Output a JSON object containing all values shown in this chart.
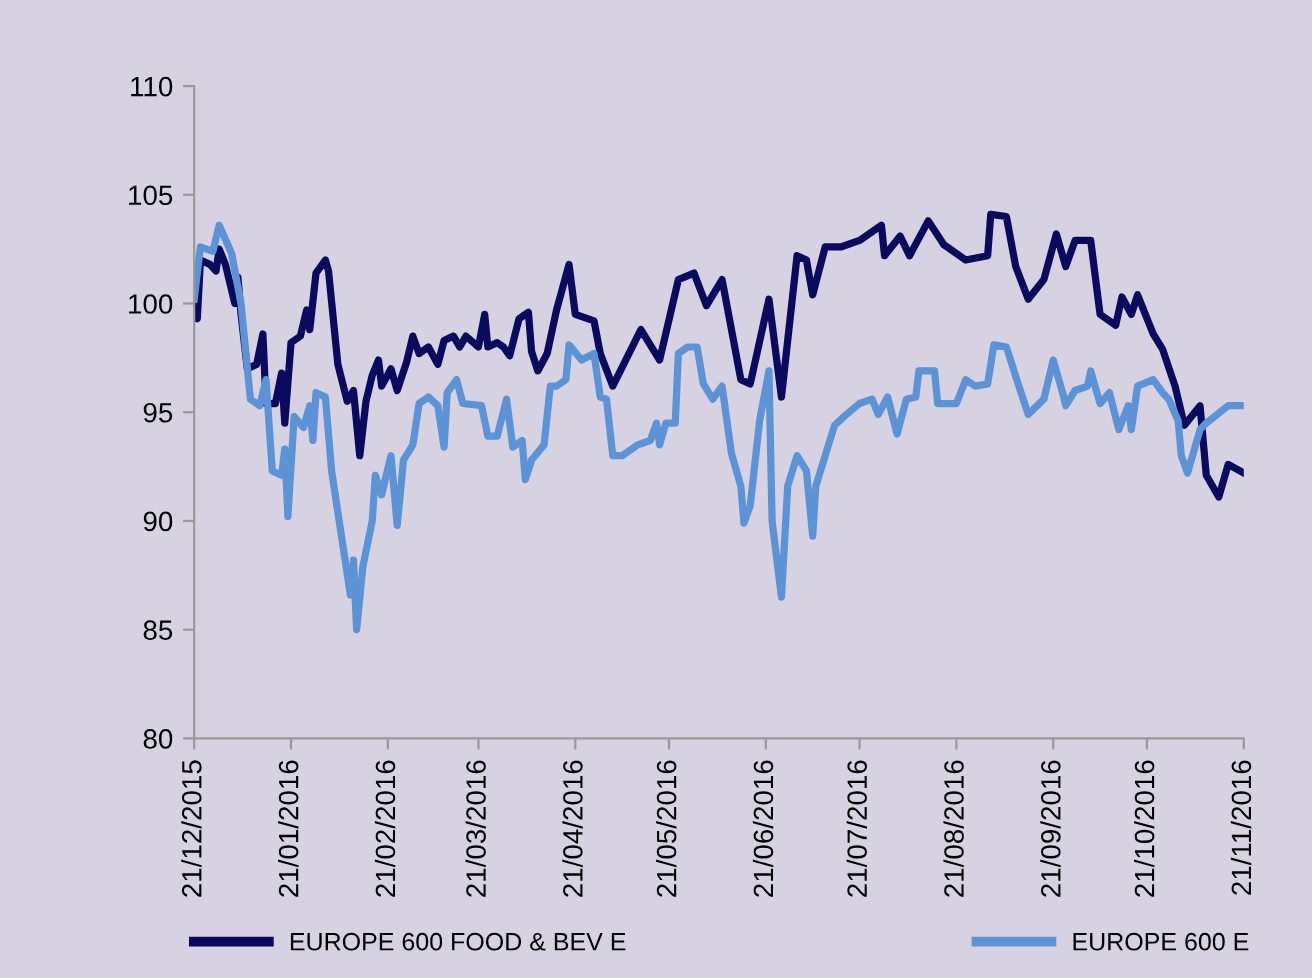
{
  "chart_data": {
    "type": "line",
    "xlim": [
      "2015-12-21",
      "2016-11-21"
    ],
    "ylim": [
      80,
      110
    ],
    "yticks": [
      80,
      85,
      90,
      95,
      100,
      105,
      110
    ],
    "xticks": [
      {
        "value": "2015-12-21",
        "label": "21/12/2015"
      },
      {
        "value": "2016-01-21",
        "label": "21/01/2016"
      },
      {
        "value": "2016-02-21",
        "label": "21/02/2016"
      },
      {
        "value": "2016-03-21",
        "label": "21/03/2016"
      },
      {
        "value": "2016-04-21",
        "label": "21/04/2016"
      },
      {
        "value": "2016-05-21",
        "label": "21/05/2016"
      },
      {
        "value": "2016-06-21",
        "label": "21/06/2016"
      },
      {
        "value": "2016-07-21",
        "label": "21/07/2016"
      },
      {
        "value": "2016-08-21",
        "label": "21/08/2016"
      },
      {
        "value": "2016-09-21",
        "label": "21/09/2016"
      },
      {
        "value": "2016-10-21",
        "label": "21/10/2016"
      },
      {
        "value": "2016-11-21",
        "label": "21/11/2016"
      }
    ],
    "grid": false,
    "legend": "bottom",
    "marker": "none",
    "line_style": "solid",
    "series": [
      {
        "name": "EUROPE 600 FOOD & BEV E",
        "color": "#0a0a5e",
        "x": [
          "2015-12-21",
          "2015-12-22",
          "2015-12-23",
          "2015-12-26",
          "2015-12-28",
          "2015-12-29",
          "2015-12-31",
          "2016-01-03",
          "2016-01-04",
          "2016-01-05",
          "2016-01-07",
          "2016-01-10",
          "2016-01-12",
          "2016-01-13",
          "2016-01-16",
          "2016-01-18",
          "2016-01-19",
          "2016-01-21",
          "2016-01-24",
          "2016-01-26",
          "2016-01-27",
          "2016-01-29",
          "2016-02-01",
          "2016-02-02",
          "2016-02-05",
          "2016-02-08",
          "2016-02-10",
          "2016-02-12",
          "2016-02-14",
          "2016-02-16",
          "2016-02-18",
          "2016-02-19",
          "2016-02-22",
          "2016-02-24",
          "2016-02-27",
          "2016-02-29",
          "2016-03-02",
          "2016-03-05",
          "2016-03-08",
          "2016-03-10",
          "2016-03-13",
          "2016-03-15",
          "2016-03-17",
          "2016-03-21",
          "2016-03-23",
          "2016-03-24",
          "2016-03-27",
          "2016-03-29",
          "2016-03-31",
          "2016-04-03",
          "2016-04-06",
          "2016-04-07",
          "2016-04-09",
          "2016-04-12",
          "2016-04-15",
          "2016-04-19",
          "2016-04-21",
          "2016-04-27",
          "2016-04-29",
          "2016-05-03",
          "2016-05-12",
          "2016-05-18",
          "2016-05-24",
          "2016-05-29",
          "2016-06-02",
          "2016-06-07",
          "2016-06-13",
          "2016-06-16",
          "2016-06-22",
          "2016-06-26",
          "2016-07-01",
          "2016-07-04",
          "2016-07-06",
          "2016-07-10",
          "2016-07-15",
          "2016-07-21",
          "2016-07-28",
          "2016-07-29",
          "2016-08-03",
          "2016-08-06",
          "2016-08-12",
          "2016-08-17",
          "2016-08-24",
          "2016-08-31",
          "2016-09-01",
          "2016-09-06",
          "2016-09-09",
          "2016-09-13",
          "2016-09-18",
          "2016-09-22",
          "2016-09-25",
          "2016-09-28",
          "2016-10-03",
          "2016-10-06",
          "2016-10-11",
          "2016-10-13",
          "2016-10-16",
          "2016-10-18",
          "2016-10-23",
          "2016-10-26",
          "2016-10-30",
          "2016-11-02",
          "2016-11-07",
          "2016-11-09",
          "2016-11-13",
          "2016-11-16",
          "2016-11-21"
        ],
        "values": [
          100,
          99.3,
          102,
          101.8,
          101.5,
          102.5,
          101.8,
          100,
          101.2,
          99.5,
          97,
          97.2,
          98.6,
          95.4,
          95.4,
          96.8,
          94.5,
          98.2,
          98.5,
          99.7,
          98.8,
          101.4,
          102,
          101.5,
          97.2,
          95.5,
          96,
          93,
          95.5,
          96.7,
          97.4,
          96.2,
          97,
          96,
          97.3,
          98.5,
          97.7,
          98,
          97.2,
          98.3,
          98.5,
          98,
          98.5,
          98,
          99.5,
          98,
          98.2,
          98,
          97.6,
          99.3,
          99.6,
          97.8,
          96.9,
          97.7,
          99.7,
          101.8,
          99.5,
          99.2,
          97.7,
          96.2,
          98.8,
          97.4,
          101.1,
          101.4,
          99.9,
          101.1,
          96.5,
          96.3,
          100.2,
          95.7,
          102.2,
          102,
          100.4,
          102.6,
          102.6,
          102.9,
          103.6,
          102.2,
          103.1,
          102.2,
          103.8,
          102.7,
          102,
          102.2,
          104.1,
          104,
          101.7,
          100.2,
          101.1,
          103.2,
          101.7,
          102.9,
          102.9,
          99.5,
          99,
          100.3,
          99.5,
          100.4,
          98.6,
          97.9,
          96.2,
          94.4,
          95.3,
          92.1,
          91.1,
          92.6,
          92.2
        ]
      },
      {
        "name": "EUROPE 600 E",
        "color": "#5b93d6",
        "x": [
          "2015-12-21",
          "2015-12-23",
          "2015-12-27",
          "2015-12-29",
          "2016-01-02",
          "2016-01-05",
          "2016-01-08",
          "2016-01-11",
          "2016-01-13",
          "2016-01-15",
          "2016-01-18",
          "2016-01-19",
          "2016-01-20",
          "2016-01-22",
          "2016-01-25",
          "2016-01-27",
          "2016-01-28",
          "2016-01-29",
          "2016-02-01",
          "2016-02-03",
          "2016-02-09",
          "2016-02-10",
          "2016-02-11",
          "2016-02-13",
          "2016-02-16",
          "2016-02-17",
          "2016-02-19",
          "2016-02-22",
          "2016-02-24",
          "2016-02-26",
          "2016-02-29",
          "2016-03-02",
          "2016-03-05",
          "2016-03-08",
          "2016-03-10",
          "2016-03-11",
          "2016-03-14",
          "2016-03-16",
          "2016-03-22",
          "2016-03-24",
          "2016-03-27",
          "2016-03-30",
          "2016-04-01",
          "2016-04-04",
          "2016-04-05",
          "2016-04-07",
          "2016-04-11",
          "2016-04-13",
          "2016-04-15",
          "2016-04-18",
          "2016-04-19",
          "2016-04-23",
          "2016-04-27",
          "2016-04-29",
          "2016-05-01",
          "2016-05-03",
          "2016-05-06",
          "2016-05-11",
          "2016-05-15",
          "2016-05-17",
          "2016-05-18",
          "2016-05-20",
          "2016-05-23",
          "2016-05-24",
          "2016-05-27",
          "2016-05-30",
          "2016-06-01",
          "2016-06-04",
          "2016-06-07",
          "2016-06-10",
          "2016-06-13",
          "2016-06-14",
          "2016-06-16",
          "2016-06-19",
          "2016-06-22",
          "2016-06-23",
          "2016-06-26",
          "2016-06-28",
          "2016-07-01",
          "2016-07-04",
          "2016-07-06",
          "2016-07-07",
          "2016-07-10",
          "2016-07-13",
          "2016-07-16",
          "2016-07-21",
          "2016-07-25",
          "2016-07-27",
          "2016-07-30",
          "2016-08-02",
          "2016-08-05",
          "2016-08-08",
          "2016-08-09",
          "2016-08-14",
          "2016-08-15",
          "2016-08-21",
          "2016-08-24",
          "2016-08-27",
          "2016-08-31",
          "2016-09-02",
          "2016-09-06",
          "2016-09-10",
          "2016-09-13",
          "2016-09-18",
          "2016-09-21",
          "2016-09-24",
          "2016-09-25",
          "2016-09-28",
          "2016-10-02",
          "2016-10-03",
          "2016-10-06",
          "2016-10-09",
          "2016-10-12",
          "2016-10-15",
          "2016-10-16",
          "2016-10-18",
          "2016-10-23",
          "2016-10-26",
          "2016-10-28",
          "2016-10-31",
          "2016-11-01",
          "2016-11-03",
          "2016-11-07",
          "2016-11-09",
          "2016-11-16",
          "2016-11-21"
        ],
        "values": [
          100.2,
          102.6,
          102.4,
          103.6,
          102.3,
          100,
          95.6,
          95.3,
          96.5,
          92.3,
          92.1,
          93.3,
          90.2,
          94.8,
          94.3,
          95.3,
          93.7,
          95.9,
          95.7,
          92.3,
          86.6,
          88.2,
          85,
          87.9,
          90,
          92.1,
          91.2,
          93,
          89.8,
          92.8,
          93.5,
          95.4,
          95.7,
          95.3,
          93.4,
          95.9,
          96.5,
          95.4,
          95.3,
          93.9,
          93.9,
          95.6,
          93.4,
          93.7,
          91.9,
          92.8,
          93.5,
          96.2,
          96.2,
          96.5,
          98.1,
          97.4,
          97.7,
          95.7,
          95.6,
          93,
          93,
          93.5,
          93.7,
          94.5,
          93.5,
          94.5,
          94.5,
          97.7,
          98,
          98,
          96.3,
          95.6,
          96.2,
          93.1,
          91.6,
          89.9,
          90.7,
          94.6,
          96.9,
          90,
          86.5,
          91.6,
          93,
          92.3,
          89.3,
          91.6,
          93,
          94.4,
          94.8,
          95.4,
          95.6,
          94.9,
          95.7,
          94,
          95.6,
          95.7,
          96.9,
          96.9,
          95.4,
          95.4,
          96.5,
          96.2,
          96.3,
          98.1,
          98,
          96.2,
          94.9,
          95.6,
          97.4,
          95.9,
          95.3,
          96,
          96.2,
          96.9,
          95.4,
          95.9,
          94.2,
          95.3,
          94.2,
          96.2,
          96.5,
          95.9,
          95.6,
          94.6,
          93,
          92.2,
          94.2,
          94.5,
          95.3,
          95.3
        ]
      }
    ]
  }
}
